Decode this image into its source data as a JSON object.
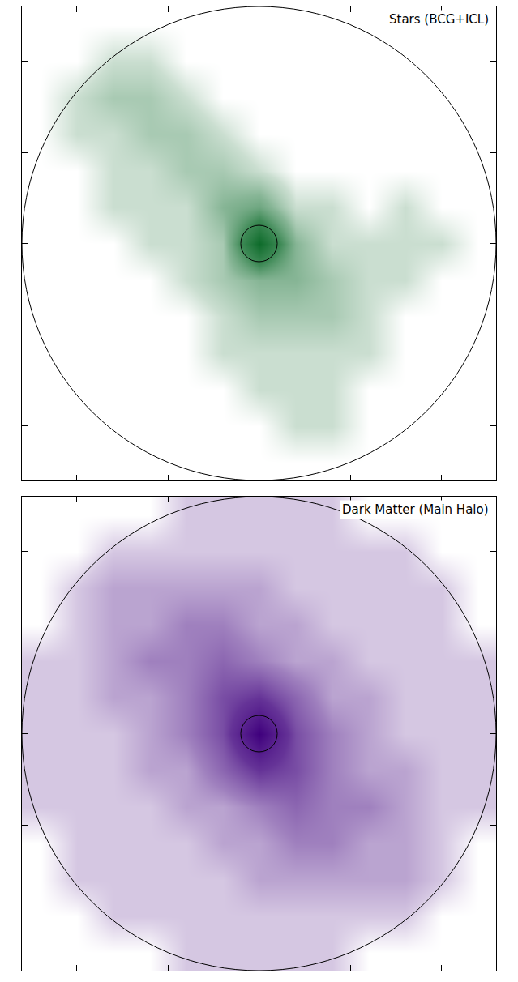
{
  "chart_data": [
    {
      "type": "heatmap",
      "title": "Stars (BCG+ICL)",
      "color": "#0d6b2a",
      "x": [
        -2.4,
        -2.0,
        -1.6,
        -1.2,
        -0.8,
        -0.4,
        0,
        0.4,
        0.8,
        1.2,
        1.6,
        2.0,
        2.4
      ],
      "y": [
        2.4,
        2.0,
        1.6,
        1.2,
        0.8,
        0.4,
        0,
        -0.4,
        -0.8,
        -1.2,
        -1.6,
        -2.0,
        -2.4
      ],
      "z": [
        [
          0,
          0,
          0,
          0,
          0,
          0,
          0,
          0,
          0,
          0,
          0,
          0,
          0
        ],
        [
          0,
          0,
          1,
          1,
          0,
          0,
          0,
          0,
          0,
          0,
          0,
          0,
          0
        ],
        [
          0,
          1,
          2,
          2,
          1,
          0,
          0,
          0,
          0,
          0,
          0,
          0,
          0
        ],
        [
          0,
          1,
          1,
          2,
          2,
          1,
          0,
          0,
          0,
          0,
          0,
          0,
          0
        ],
        [
          0,
          0,
          1,
          1,
          2,
          2,
          1,
          0,
          0,
          0,
          0,
          0,
          0
        ],
        [
          0,
          0,
          1,
          1,
          1,
          3,
          4,
          1,
          1,
          0,
          1,
          0,
          0
        ],
        [
          0,
          0,
          0,
          1,
          1,
          2,
          10,
          3,
          1,
          1,
          1,
          1,
          0
        ],
        [
          0,
          0,
          0,
          0,
          1,
          2,
          3,
          3,
          2,
          1,
          1,
          0,
          0
        ],
        [
          0,
          0,
          0,
          0,
          0,
          1,
          2,
          2,
          2,
          1,
          0,
          0,
          0
        ],
        [
          0,
          0,
          0,
          0,
          0,
          1,
          1,
          1,
          1,
          1,
          0,
          0,
          0
        ],
        [
          0,
          0,
          0,
          0,
          0,
          0,
          1,
          1,
          1,
          0,
          0,
          0,
          0
        ],
        [
          0,
          0,
          0,
          0,
          0,
          0,
          0,
          1,
          1,
          0,
          0,
          0,
          0
        ],
        [
          0,
          0,
          0,
          0,
          0,
          0,
          0,
          0,
          0,
          0,
          0,
          0,
          0
        ]
      ],
      "zlim": [
        0,
        10
      ],
      "xlim": [
        -2.6,
        2.6
      ],
      "ylim": [
        -2.6,
        2.6
      ],
      "xticks": [
        -2,
        -1,
        0,
        1,
        2
      ],
      "yticks": [
        -2,
        -1,
        0,
        1,
        2
      ],
      "tick_labels": false,
      "circle_radii": [
        2.6,
        0.2
      ]
    },
    {
      "type": "heatmap",
      "title": "Dark Matter (Main Halo)",
      "color": "#3f007d",
      "x": [
        -2.4,
        -2.0,
        -1.6,
        -1.2,
        -0.8,
        -0.4,
        0,
        0.4,
        0.8,
        1.2,
        1.6,
        2.0,
        2.4
      ],
      "y": [
        2.4,
        2.0,
        1.6,
        1.2,
        0.8,
        0.4,
        0,
        -0.4,
        -0.8,
        -1.2,
        -1.6,
        -2.0,
        -2.4
      ],
      "z": [
        [
          0,
          0,
          0,
          0,
          1,
          1,
          1,
          1,
          1,
          0,
          0,
          0,
          0
        ],
        [
          0,
          0,
          1,
          1,
          1,
          1,
          1,
          1,
          1,
          1,
          1,
          0,
          0
        ],
        [
          0,
          1,
          2,
          2,
          2,
          2,
          2,
          1,
          1,
          1,
          1,
          1,
          0
        ],
        [
          0,
          1,
          2,
          2,
          3,
          3,
          2,
          2,
          1,
          1,
          1,
          1,
          0
        ],
        [
          1,
          1,
          2,
          3,
          3,
          4,
          3,
          2,
          2,
          1,
          1,
          1,
          1
        ],
        [
          1,
          1,
          2,
          2,
          3,
          5,
          6,
          4,
          2,
          2,
          1,
          1,
          1
        ],
        [
          1,
          1,
          1,
          2,
          3,
          5,
          10,
          5,
          3,
          2,
          1,
          1,
          1
        ],
        [
          1,
          1,
          1,
          2,
          2,
          4,
          6,
          5,
          3,
          2,
          2,
          1,
          1
        ],
        [
          1,
          1,
          1,
          1,
          2,
          2,
          3,
          4,
          3,
          3,
          2,
          1,
          1
        ],
        [
          0,
          1,
          1,
          1,
          1,
          2,
          2,
          3,
          3,
          2,
          2,
          1,
          0
        ],
        [
          0,
          1,
          1,
          1,
          1,
          1,
          2,
          2,
          2,
          2,
          2,
          1,
          0
        ],
        [
          0,
          0,
          1,
          1,
          1,
          1,
          1,
          1,
          1,
          1,
          1,
          0,
          0
        ],
        [
          0,
          0,
          0,
          0,
          1,
          1,
          1,
          1,
          1,
          0,
          0,
          0,
          0
        ]
      ],
      "zlim": [
        0,
        10
      ],
      "xlim": [
        -2.6,
        2.6
      ],
      "ylim": [
        -2.6,
        2.6
      ],
      "xticks": [
        -2,
        -1,
        0,
        1,
        2
      ],
      "yticks": [
        -2,
        -1,
        0,
        1,
        2
      ],
      "tick_labels": false,
      "circle_radii": [
        2.6,
        0.2
      ]
    }
  ]
}
